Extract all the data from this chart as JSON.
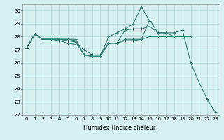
{
  "xlabel": "Humidex (Indice chaleur)",
  "ylabel": "",
  "background_color": "#d6f0ef",
  "grid_color": "#b0d8d5",
  "line_color": "#2e7d72",
  "x_values": [
    0,
    1,
    2,
    3,
    4,
    5,
    6,
    7,
    8,
    9,
    10,
    11,
    12,
    13,
    14,
    15,
    16,
    17,
    18,
    19,
    20,
    21,
    22,
    23
  ],
  "series": [
    [
      27.1,
      28.2,
      27.8,
      27.8,
      27.7,
      27.5,
      27.4,
      27.0,
      26.6,
      26.6,
      27.5,
      27.5,
      27.7,
      27.7,
      27.8,
      29.3,
      28.3,
      28.3,
      28.3,
      28.5,
      26.0,
      24.5,
      23.2,
      22.2
    ],
    [
      27.1,
      28.2,
      27.8,
      27.8,
      27.8,
      27.8,
      27.8,
      26.6,
      26.5,
      26.5,
      28.0,
      28.3,
      28.6,
      29.0,
      30.3,
      29.2,
      null,
      null,
      null,
      null,
      null,
      null,
      null,
      null
    ],
    [
      27.1,
      28.2,
      27.8,
      27.8,
      27.8,
      27.8,
      27.7,
      26.6,
      26.5,
      26.5,
      27.5,
      27.5,
      28.5,
      28.6,
      28.6,
      28.8,
      28.3,
      28.3,
      28.0,
      28.0,
      28.0,
      null,
      null,
      null
    ],
    [
      27.1,
      28.2,
      27.8,
      27.8,
      27.8,
      27.7,
      27.6,
      26.6,
      26.5,
      26.5,
      27.5,
      27.5,
      27.8,
      27.8,
      27.8,
      28.0,
      28.0,
      28.0,
      28.0,
      28.0,
      null,
      null,
      null,
      null
    ]
  ],
  "ylim": [
    22,
    30.5
  ],
  "yticks": [
    22,
    23,
    24,
    25,
    26,
    27,
    28,
    29,
    30
  ],
  "xticks": [
    0,
    1,
    2,
    3,
    4,
    5,
    6,
    7,
    8,
    9,
    10,
    11,
    12,
    13,
    14,
    15,
    16,
    17,
    18,
    19,
    20,
    21,
    22,
    23
  ],
  "marker": "+",
  "markersize": 3,
  "linewidth": 0.8,
  "axis_fontsize": 6,
  "tick_fontsize": 5
}
